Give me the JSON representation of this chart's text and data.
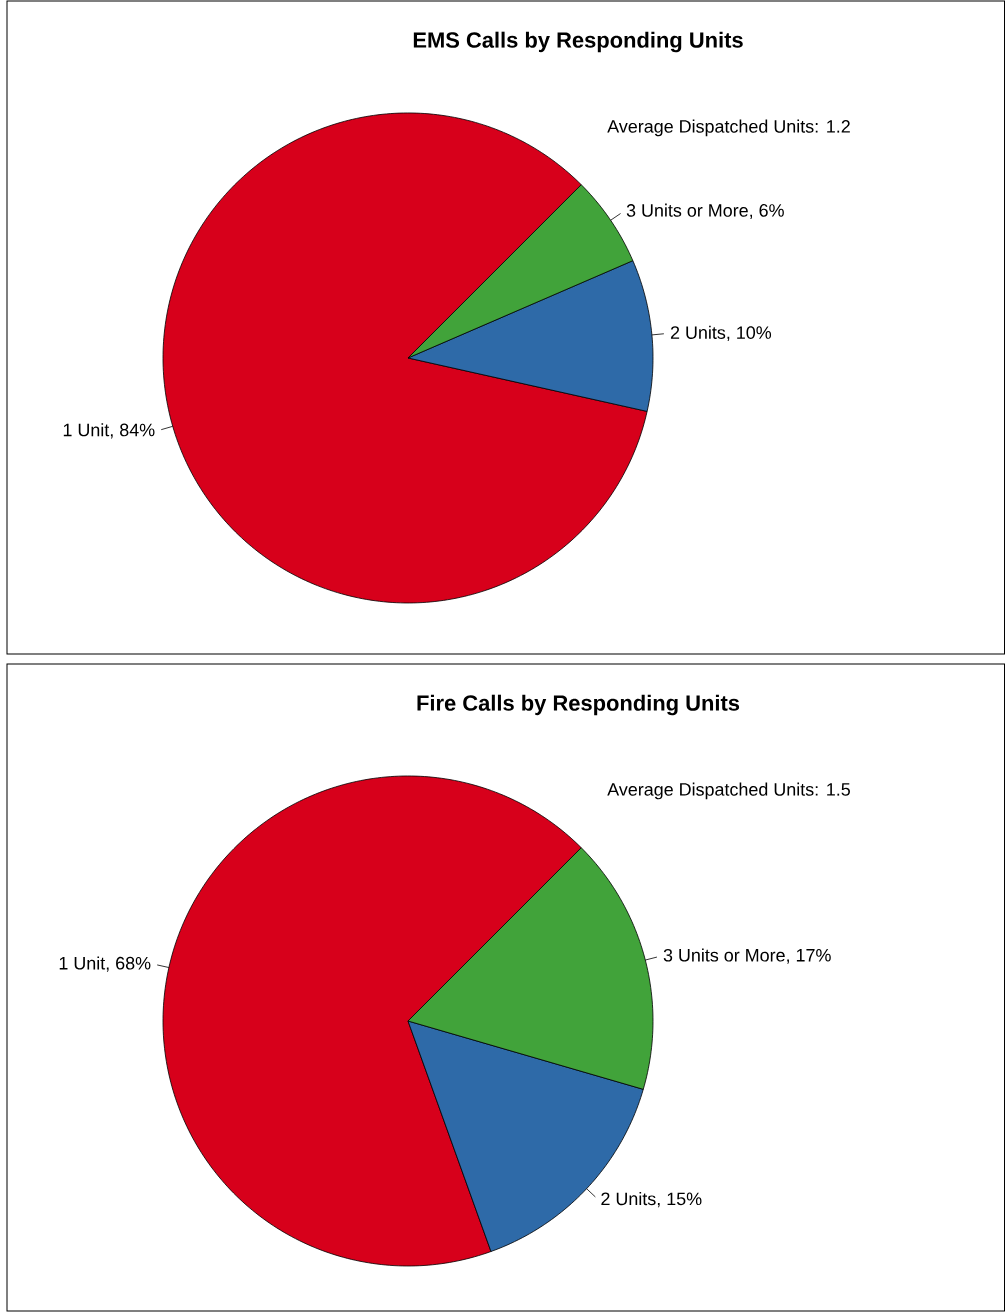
{
  "chart_data": [
    {
      "type": "pie",
      "title": "EMS Calls by Responding Units",
      "categories": [
        "1 Unit, 84%",
        "2 Units, 10%",
        "3 Units or More, 6%"
      ],
      "values": [
        84,
        10,
        6
      ],
      "colors": [
        "#d7001b",
        "#2e6aa8",
        "#41a33a"
      ],
      "annotations": [
        "Average Dispatched Units: 1.2"
      ]
    },
    {
      "type": "pie",
      "title": "Fire Calls by Responding Units",
      "categories": [
        "1 Unit, 68%",
        "2 Units, 15%",
        "3 Units or More, 17%"
      ],
      "values": [
        68,
        15,
        17
      ],
      "colors": [
        "#d7001b",
        "#2e6aa8",
        "#41a33a"
      ],
      "annotations": [
        "Average Dispatched Units: 1.5"
      ]
    }
  ]
}
